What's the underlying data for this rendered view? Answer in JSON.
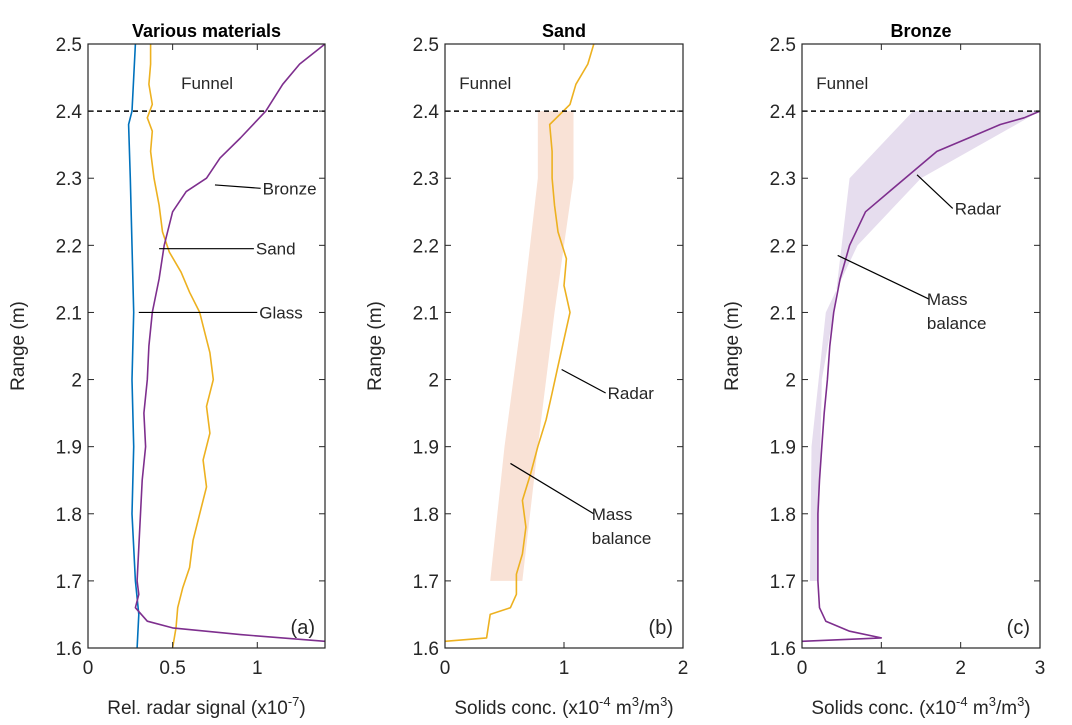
{
  "chart_data": [
    {
      "type": "line",
      "panel_label": "(a)",
      "title": "Various materials",
      "xlabel": "Rel. radar signal (x10",
      "xlabel_sup": "-7",
      "xlabel_end": ")",
      "ylabel": "Range (m)",
      "xlim": [
        0,
        1.4
      ],
      "ylim": [
        1.6,
        2.5
      ],
      "xticks": [
        "0",
        "0.5",
        "1"
      ],
      "yticks": [
        "1.6",
        "1.7",
        "1.8",
        "1.9",
        "2",
        "2.1",
        "2.2",
        "2.3",
        "2.4",
        "2.5"
      ],
      "reference_line": {
        "y": 2.4,
        "label": "Funnel",
        "label_x": 0.55
      },
      "series": [
        {
          "name": "Glass",
          "color": "#0072BD",
          "points": [
            [
              0.29,
              1.6
            ],
            [
              0.3,
              1.65
            ],
            [
              0.28,
              1.7
            ],
            [
              0.26,
              1.8
            ],
            [
              0.27,
              1.9
            ],
            [
              0.26,
              2.0
            ],
            [
              0.27,
              2.1
            ],
            [
              0.26,
              2.2
            ],
            [
              0.25,
              2.3
            ],
            [
              0.24,
              2.38
            ],
            [
              0.26,
              2.4
            ],
            [
              0.27,
              2.45
            ],
            [
              0.28,
              2.5
            ]
          ]
        },
        {
          "name": "Sand",
          "color": "#EDB120",
          "points": [
            [
              0.5,
              1.6
            ],
            [
              0.52,
              1.63
            ],
            [
              0.53,
              1.66
            ],
            [
              0.56,
              1.69
            ],
            [
              0.6,
              1.72
            ],
            [
              0.62,
              1.76
            ],
            [
              0.66,
              1.8
            ],
            [
              0.7,
              1.84
            ],
            [
              0.68,
              1.88
            ],
            [
              0.72,
              1.92
            ],
            [
              0.7,
              1.96
            ],
            [
              0.74,
              2.0
            ],
            [
              0.72,
              2.04
            ],
            [
              0.68,
              2.08
            ],
            [
              0.66,
              2.1
            ],
            [
              0.6,
              2.13
            ],
            [
              0.55,
              2.16
            ],
            [
              0.48,
              2.19
            ],
            [
              0.44,
              2.22
            ],
            [
              0.42,
              2.26
            ],
            [
              0.39,
              2.3
            ],
            [
              0.37,
              2.34
            ],
            [
              0.38,
              2.37
            ],
            [
              0.35,
              2.39
            ],
            [
              0.38,
              2.41
            ],
            [
              0.36,
              2.44
            ],
            [
              0.37,
              2.47
            ],
            [
              0.37,
              2.5
            ]
          ]
        },
        {
          "name": "Bronze",
          "color": "#7E2F8E",
          "points": [
            [
              1.4,
              1.61
            ],
            [
              0.9,
              1.62
            ],
            [
              0.5,
              1.63
            ],
            [
              0.35,
              1.64
            ],
            [
              0.28,
              1.66
            ],
            [
              0.3,
              1.68
            ],
            [
              0.29,
              1.7
            ],
            [
              0.3,
              1.75
            ],
            [
              0.31,
              1.8
            ],
            [
              0.32,
              1.85
            ],
            [
              0.34,
              1.9
            ],
            [
              0.33,
              1.95
            ],
            [
              0.35,
              2.0
            ],
            [
              0.36,
              2.05
            ],
            [
              0.38,
              2.1
            ],
            [
              0.42,
              2.15
            ],
            [
              0.45,
              2.2
            ],
            [
              0.5,
              2.25
            ],
            [
              0.58,
              2.28
            ],
            [
              0.7,
              2.3
            ],
            [
              0.78,
              2.33
            ],
            [
              0.9,
              2.36
            ],
            [
              1.05,
              2.4
            ],
            [
              1.15,
              2.44
            ],
            [
              1.25,
              2.47
            ],
            [
              1.35,
              2.49
            ],
            [
              1.4,
              2.5
            ]
          ]
        }
      ],
      "annotations": [
        {
          "text": "Bronze",
          "from": [
            0.75,
            2.29
          ],
          "to": [
            1.02,
            2.285
          ]
        },
        {
          "text": "Sand",
          "from": [
            0.42,
            2.195
          ],
          "to": [
            0.98,
            2.195
          ]
        },
        {
          "text": "Glass",
          "from": [
            0.3,
            2.1
          ],
          "to": [
            1.0,
            2.1
          ]
        }
      ]
    },
    {
      "type": "line",
      "panel_label": "(b)",
      "title": "Sand",
      "xlabel": "Solids conc. (x10",
      "xlabel_sup": "-4",
      "xlabel_mid": " m",
      "xlabel_sup2": "3",
      "xlabel_end": "/m",
      "xlabel_sup3": "3",
      "xlabel_end2": ")",
      "ylabel": "Range (m)",
      "xlim": [
        0,
        2
      ],
      "ylim": [
        1.6,
        2.5
      ],
      "xticks": [
        "0",
        "1",
        "2"
      ],
      "yticks": [
        "1.6",
        "1.7",
        "1.8",
        "1.9",
        "2",
        "2.1",
        "2.2",
        "2.3",
        "2.4",
        "2.5"
      ],
      "reference_line": {
        "y": 2.4,
        "label": "Funnel",
        "label_x": 0.12
      },
      "band": {
        "name": "Mass balance",
        "color": "#F9E2D6",
        "lower": [
          [
            0.38,
            1.7
          ],
          [
            0.5,
            1.9
          ],
          [
            0.65,
            2.1
          ],
          [
            0.78,
            2.3
          ],
          [
            0.78,
            2.4
          ]
        ],
        "upper": [
          [
            0.65,
            1.7
          ],
          [
            0.78,
            1.9
          ],
          [
            0.92,
            2.1
          ],
          [
            1.08,
            2.3
          ],
          [
            1.08,
            2.4
          ]
        ]
      },
      "series": [
        {
          "name": "Radar",
          "color": "#EDB120",
          "points": [
            [
              0.0,
              1.61
            ],
            [
              0.35,
              1.615
            ],
            [
              0.38,
              1.65
            ],
            [
              0.55,
              1.66
            ],
            [
              0.6,
              1.68
            ],
            [
              0.6,
              1.71
            ],
            [
              0.65,
              1.74
            ],
            [
              0.68,
              1.78
            ],
            [
              0.65,
              1.82
            ],
            [
              0.72,
              1.86
            ],
            [
              0.78,
              1.9
            ],
            [
              0.85,
              1.94
            ],
            [
              0.9,
              1.98
            ],
            [
              0.95,
              2.02
            ],
            [
              1.0,
              2.06
            ],
            [
              1.05,
              2.1
            ],
            [
              1.0,
              2.14
            ],
            [
              1.02,
              2.18
            ],
            [
              0.95,
              2.22
            ],
            [
              0.92,
              2.26
            ],
            [
              0.9,
              2.3
            ],
            [
              0.9,
              2.34
            ],
            [
              0.88,
              2.38
            ],
            [
              1.05,
              2.41
            ],
            [
              1.1,
              2.44
            ],
            [
              1.2,
              2.47
            ],
            [
              1.25,
              2.5
            ]
          ]
        }
      ],
      "annotations": [
        {
          "text": "Radar",
          "from": [
            0.98,
            2.015
          ],
          "to": [
            1.35,
            1.98
          ]
        },
        {
          "text": "Mass balance",
          "from": [
            0.55,
            1.875
          ],
          "to": [
            1.25,
            1.8
          ]
        }
      ]
    },
    {
      "type": "line",
      "panel_label": "(c)",
      "title": "Bronze",
      "xlabel": "Solids conc. (x10",
      "xlabel_sup": "-4",
      "xlabel_mid": " m",
      "xlabel_sup2": "3",
      "xlabel_end": "/m",
      "xlabel_sup3": "3",
      "xlabel_end2": ")",
      "ylabel": "Range (m)",
      "xlim": [
        0,
        3
      ],
      "ylim": [
        1.6,
        2.5
      ],
      "xticks": [
        "0",
        "1",
        "2",
        "3"
      ],
      "yticks": [
        "1.6",
        "1.7",
        "1.8",
        "1.9",
        "2",
        "2.1",
        "2.2",
        "2.3",
        "2.4",
        "2.5"
      ],
      "reference_line": {
        "y": 2.4,
        "label": "Funnel",
        "label_x": 0.18
      },
      "band": {
        "name": "Mass balance",
        "color": "#E6DDEE",
        "lower": [
          [
            0.1,
            1.7
          ],
          [
            0.12,
            1.9
          ],
          [
            0.3,
            2.1
          ],
          [
            0.7,
            2.2
          ],
          [
            1.5,
            2.3
          ],
          [
            3.0,
            2.4
          ]
        ],
        "upper": [
          [
            0.2,
            1.7
          ],
          [
            0.25,
            2.0
          ],
          [
            0.4,
            2.1
          ],
          [
            0.6,
            2.3
          ],
          [
            1.4,
            2.4
          ],
          [
            2.9,
            2.4
          ]
        ]
      },
      "series": [
        {
          "name": "Radar",
          "color": "#7E2F8E",
          "points": [
            [
              0.0,
              1.61
            ],
            [
              1.0,
              1.615
            ],
            [
              0.6,
              1.625
            ],
            [
              0.3,
              1.64
            ],
            [
              0.22,
              1.66
            ],
            [
              0.2,
              1.7
            ],
            [
              0.2,
              1.75
            ],
            [
              0.2,
              1.8
            ],
            [
              0.22,
              1.85
            ],
            [
              0.25,
              1.9
            ],
            [
              0.28,
              1.95
            ],
            [
              0.32,
              2.0
            ],
            [
              0.35,
              2.05
            ],
            [
              0.4,
              2.1
            ],
            [
              0.48,
              2.15
            ],
            [
              0.6,
              2.2
            ],
            [
              0.8,
              2.25
            ],
            [
              1.1,
              2.28
            ],
            [
              1.4,
              2.31
            ],
            [
              1.7,
              2.34
            ],
            [
              2.1,
              2.36
            ],
            [
              2.5,
              2.38
            ],
            [
              2.8,
              2.39
            ],
            [
              3.0,
              2.4
            ]
          ]
        }
      ],
      "annotations": [
        {
          "text": "Radar",
          "from": [
            1.45,
            2.305
          ],
          "to": [
            1.9,
            2.255
          ]
        },
        {
          "text": "Mass balance",
          "from": [
            0.45,
            2.185
          ],
          "to": [
            1.6,
            2.12
          ]
        }
      ]
    }
  ]
}
